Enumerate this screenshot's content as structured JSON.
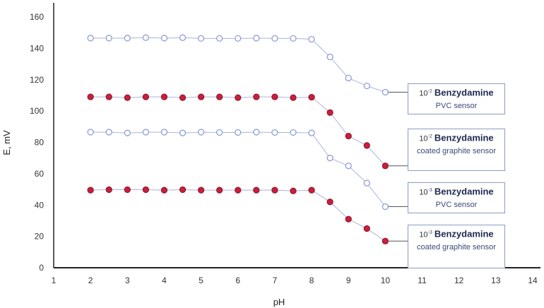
{
  "chart_data": {
    "type": "line",
    "xlabel": "pH",
    "ylabel": "E, mV",
    "xlim": [
      1,
      14
    ],
    "ylim": [
      0,
      160
    ],
    "xticks": [
      1,
      2,
      3,
      4,
      5,
      6,
      7,
      8,
      9,
      10,
      11,
      12,
      13,
      14
    ],
    "yticks": [
      0,
      20,
      40,
      60,
      80,
      100,
      120,
      140,
      160
    ],
    "grid": false,
    "x": [
      2,
      2.5,
      3,
      3.5,
      4,
      4.5,
      5,
      5.5,
      6,
      6.5,
      7,
      7.5,
      8,
      8.5,
      9,
      9.5,
      10
    ],
    "series": [
      {
        "name_conc": "10",
        "name_exp": "-2",
        "name_main": "Benzydamine",
        "name_sub": "PVC sensor",
        "marker": "open",
        "color": "#8f9fd8",
        "values": [
          146.5,
          146.5,
          146.5,
          146.8,
          146.5,
          146.8,
          146.3,
          146.3,
          146.3,
          146.5,
          146.3,
          146.3,
          145.8,
          134.5,
          121,
          116,
          112
        ]
      },
      {
        "name_conc": "10",
        "name_exp": "-2",
        "name_main": "Benzydamine",
        "name_sub": "coated graphite sensor",
        "marker": "filled",
        "color": "#c8203c",
        "values": [
          109,
          109,
          108.5,
          109,
          109,
          108.5,
          109,
          109,
          108.5,
          109,
          109,
          108.5,
          108.8,
          99,
          84,
          78,
          65
        ]
      },
      {
        "name_conc": "10",
        "name_exp": "-3",
        "name_main": "Benzydamine",
        "name_sub": "PVC sensor",
        "marker": "open",
        "color": "#8f9fd8",
        "values": [
          86.5,
          86.5,
          86,
          86.5,
          86.5,
          86,
          86.5,
          86.3,
          86.3,
          86.5,
          86.3,
          86.3,
          86,
          70,
          65,
          54,
          39
        ]
      },
      {
        "name_conc": "10",
        "name_exp": "-3",
        "name_main": "Benzydamine",
        "name_sub": "coated graphite sensor",
        "marker": "filled",
        "color": "#c8203c",
        "values": [
          49.5,
          49.8,
          49.8,
          49.8,
          49.5,
          49.8,
          49.5,
          49.5,
          49.5,
          49.5,
          49.5,
          49,
          49.5,
          42,
          31,
          25,
          17
        ]
      }
    ]
  }
}
